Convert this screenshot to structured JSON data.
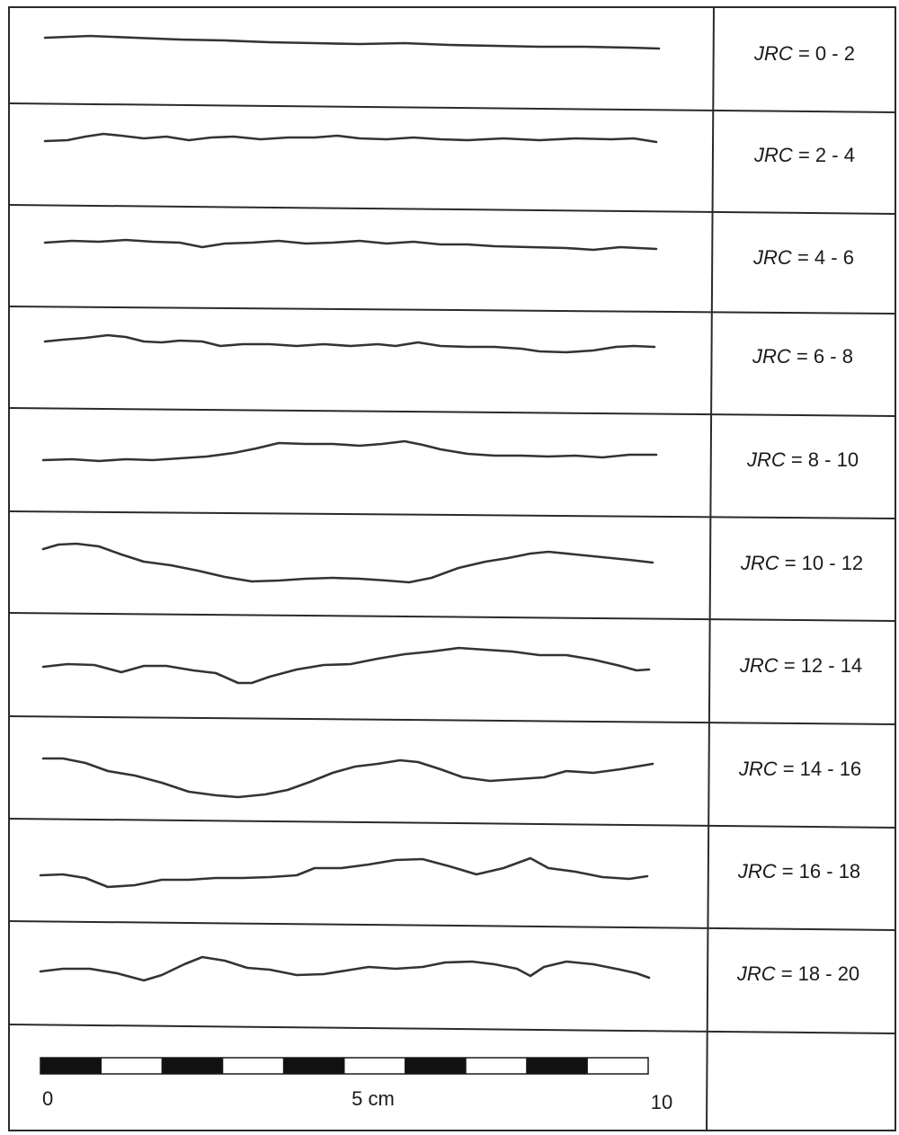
{
  "profiles": [
    {
      "jrc_prefix": "JRC",
      "jrc_range": "= 0 - 2"
    },
    {
      "jrc_prefix": "JRC",
      "jrc_range": "= 2 - 4"
    },
    {
      "jrc_prefix": "JRC",
      "jrc_range": "= 4 - 6"
    },
    {
      "jrc_prefix": "JRC",
      "jrc_range": "= 6 - 8"
    },
    {
      "jrc_prefix": "JRC",
      "jrc_range": "= 8 - 10"
    },
    {
      "jrc_prefix": "JRC",
      "jrc_range": "= 10 - 12"
    },
    {
      "jrc_prefix": "JRC",
      "jrc_range": "= 12 - 14"
    },
    {
      "jrc_prefix": "JRC",
      "jrc_range": "= 14 - 16"
    },
    {
      "jrc_prefix": "JRC",
      "jrc_range": "= 16 - 18"
    },
    {
      "jrc_prefix": "JRC",
      "jrc_range": "= 18 - 20"
    }
  ],
  "scale_bar": {
    "label_start": "0",
    "label_mid": "5 cm",
    "label_end": "10",
    "segments": 10
  }
}
